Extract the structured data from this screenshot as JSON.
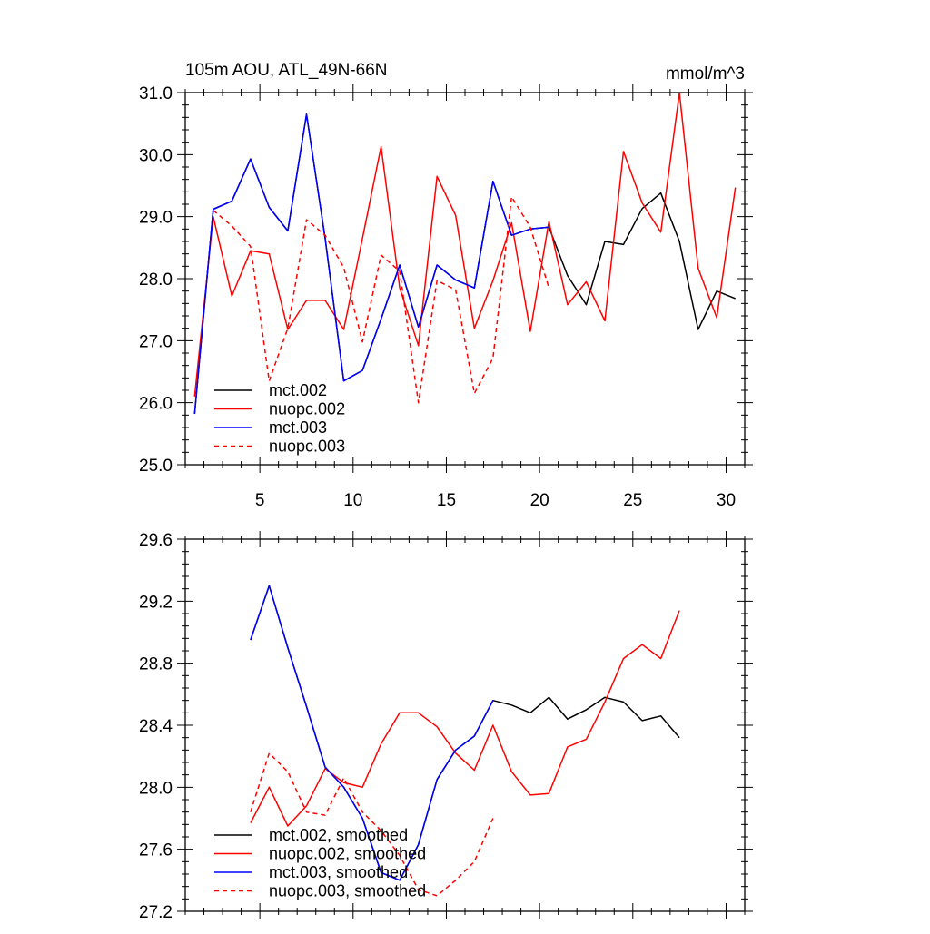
{
  "chart_data": [
    {
      "type": "line",
      "title_left": "105m AOU, ATL_49N-66N",
      "title_right": "mmol/m^3",
      "xlim": [
        1,
        31
      ],
      "ylim": [
        25.0,
        31.0
      ],
      "x_ticks": [
        5,
        10,
        15,
        20,
        25,
        30
      ],
      "x_tick_labels": [
        "5",
        "10",
        "15",
        "20",
        "25",
        "30"
      ],
      "y_ticks": [
        25.0,
        26.0,
        27.0,
        28.0,
        29.0,
        30.0,
        31.0
      ],
      "y_tick_labels": [
        "25.0",
        "26.0",
        "27.0",
        "28.0",
        "29.0",
        "30.0",
        "31.0"
      ],
      "legend_position": "bottom-left",
      "series": [
        {
          "name": "mct.002",
          "color": "#000000",
          "dash": "solid",
          "x": [
            1.5,
            2.5,
            3.5,
            4.5,
            5.5,
            6.5,
            7.5,
            8.5,
            9.5,
            10.5,
            11.5,
            12.5,
            13.5,
            14.5,
            15.5,
            16.5,
            17.5,
            18.5,
            19.5,
            20.5,
            21.5,
            22.5,
            23.5,
            24.5,
            25.5,
            26.5,
            27.5,
            28.5,
            29.5,
            30.5
          ],
          "values": [
            25.82,
            29.12,
            29.25,
            29.93,
            29.15,
            28.77,
            30.65,
            28.65,
            26.35,
            26.52,
            27.35,
            28.22,
            27.22,
            28.22,
            27.98,
            27.85,
            29.57,
            28.7,
            28.8,
            28.83,
            28.05,
            27.58,
            28.6,
            28.55,
            29.13,
            29.38,
            28.6,
            27.18,
            27.8,
            27.68
          ]
        },
        {
          "name": "nuopc.002",
          "color": "#ff0000",
          "dash": "solid",
          "x": [
            1.5,
            2.5,
            3.5,
            4.5,
            5.5,
            6.5,
            7.5,
            8.5,
            9.5,
            10.5,
            11.5,
            12.5,
            13.5,
            14.5,
            15.5,
            16.5,
            17.5,
            18.5,
            19.5,
            20.5,
            21.5,
            22.5,
            23.5,
            24.5,
            25.5,
            26.5,
            27.5,
            28.5,
            29.5,
            30.5
          ],
          "values": [
            26.1,
            29.0,
            27.72,
            28.45,
            28.4,
            27.18,
            27.65,
            27.65,
            27.18,
            28.65,
            30.13,
            27.85,
            26.92,
            29.65,
            29.02,
            27.2,
            27.97,
            28.9,
            27.15,
            28.92,
            27.58,
            27.95,
            27.32,
            30.05,
            29.22,
            28.75,
            31.0,
            28.17,
            27.37,
            29.47
          ]
        },
        {
          "name": "mct.003",
          "color": "#0000ff",
          "dash": "solid",
          "x": [
            1.5,
            2.5,
            3.5,
            4.5,
            5.5,
            6.5,
            7.5,
            8.5,
            9.5,
            10.5,
            11.5,
            12.5,
            13.5,
            14.5,
            15.5,
            16.5,
            17.5,
            18.5,
            19.5,
            20.5
          ],
          "values": [
            25.82,
            29.12,
            29.25,
            29.93,
            29.15,
            28.77,
            30.65,
            28.65,
            26.35,
            26.52,
            27.35,
            28.22,
            27.22,
            28.22,
            27.98,
            27.85,
            29.57,
            28.7,
            28.8,
            28.83
          ]
        },
        {
          "name": "nuopc.003",
          "color": "#ff0000",
          "dash": "dashed",
          "x": [
            2.5,
            3.5,
            4.5,
            5.5,
            6.5,
            7.5,
            8.5,
            9.5,
            10.5,
            11.5,
            12.5,
            13.5,
            14.5,
            15.5,
            16.5,
            17.5,
            18.5,
            19.5,
            20.5
          ],
          "values": [
            29.1,
            28.85,
            28.52,
            26.35,
            27.2,
            28.95,
            28.7,
            28.18,
            26.98,
            28.38,
            28.12,
            26.0,
            27.97,
            27.82,
            26.15,
            26.72,
            29.32,
            28.83,
            27.85
          ]
        }
      ]
    },
    {
      "type": "line",
      "xlim": [
        1,
        31
      ],
      "ylim": [
        27.2,
        29.6
      ],
      "x_ticks": [
        5,
        10,
        15,
        20,
        25,
        30
      ],
      "y_ticks": [
        27.2,
        27.6,
        28.0,
        28.4,
        28.8,
        29.2,
        29.6
      ],
      "y_tick_labels": [
        "27.2",
        "27.6",
        "28.0",
        "28.4",
        "28.8",
        "29.2",
        "29.6"
      ],
      "legend_position": "bottom-left",
      "series": [
        {
          "name": "mct.002, smoothed",
          "color": "#000000",
          "dash": "solid",
          "x": [
            4.5,
            5.5,
            6.5,
            7.5,
            8.5,
            9.5,
            10.5,
            11.5,
            12.5,
            13.5,
            14.5,
            15.5,
            16.5,
            17.5,
            18.5,
            19.5,
            20.5,
            21.5,
            22.5,
            23.5,
            24.5,
            25.5,
            26.5,
            27.5
          ],
          "values": [
            28.95,
            29.3,
            28.9,
            28.52,
            28.13,
            28.0,
            27.8,
            27.45,
            27.4,
            27.63,
            28.05,
            28.24,
            28.33,
            28.56,
            28.53,
            28.48,
            28.58,
            28.44,
            28.5,
            28.58,
            28.55,
            28.43,
            28.46,
            28.32
          ]
        },
        {
          "name": "nuopc.002, smoothed",
          "color": "#ff0000",
          "dash": "solid",
          "x": [
            4.5,
            5.5,
            6.5,
            7.5,
            8.5,
            9.5,
            10.5,
            11.5,
            12.5,
            13.5,
            14.5,
            15.5,
            16.5,
            17.5,
            18.5,
            19.5,
            20.5,
            21.5,
            22.5,
            23.5,
            24.5,
            25.5,
            26.5,
            27.5
          ],
          "values": [
            27.77,
            28.0,
            27.75,
            27.88,
            28.12,
            28.03,
            28.0,
            28.28,
            28.48,
            28.48,
            28.39,
            28.22,
            28.11,
            28.4,
            28.1,
            27.95,
            27.96,
            28.26,
            28.31,
            28.55,
            28.83,
            28.92,
            28.83,
            29.14
          ]
        },
        {
          "name": "mct.003, smoothed",
          "color": "#0000ff",
          "dash": "solid",
          "x": [
            4.5,
            5.5,
            6.5,
            7.5,
            8.5,
            9.5,
            10.5,
            11.5,
            12.5,
            13.5,
            14.5,
            15.5,
            16.5,
            17.5
          ],
          "values": [
            28.95,
            29.3,
            28.9,
            28.52,
            28.13,
            28.0,
            27.8,
            27.45,
            27.4,
            27.63,
            28.05,
            28.24,
            28.33,
            28.56
          ]
        },
        {
          "name": "nuopc.003, smoothed",
          "color": "#ff0000",
          "dash": "dashed",
          "x": [
            4.5,
            5.5,
            6.5,
            7.5,
            8.5,
            9.5,
            10.5,
            11.5,
            12.5,
            13.5,
            14.5,
            15.5,
            16.5,
            17.5
          ],
          "values": [
            27.84,
            28.22,
            28.1,
            27.84,
            27.82,
            28.06,
            27.84,
            27.72,
            27.56,
            27.34,
            27.3,
            27.4,
            27.52,
            27.8
          ]
        }
      ]
    }
  ]
}
